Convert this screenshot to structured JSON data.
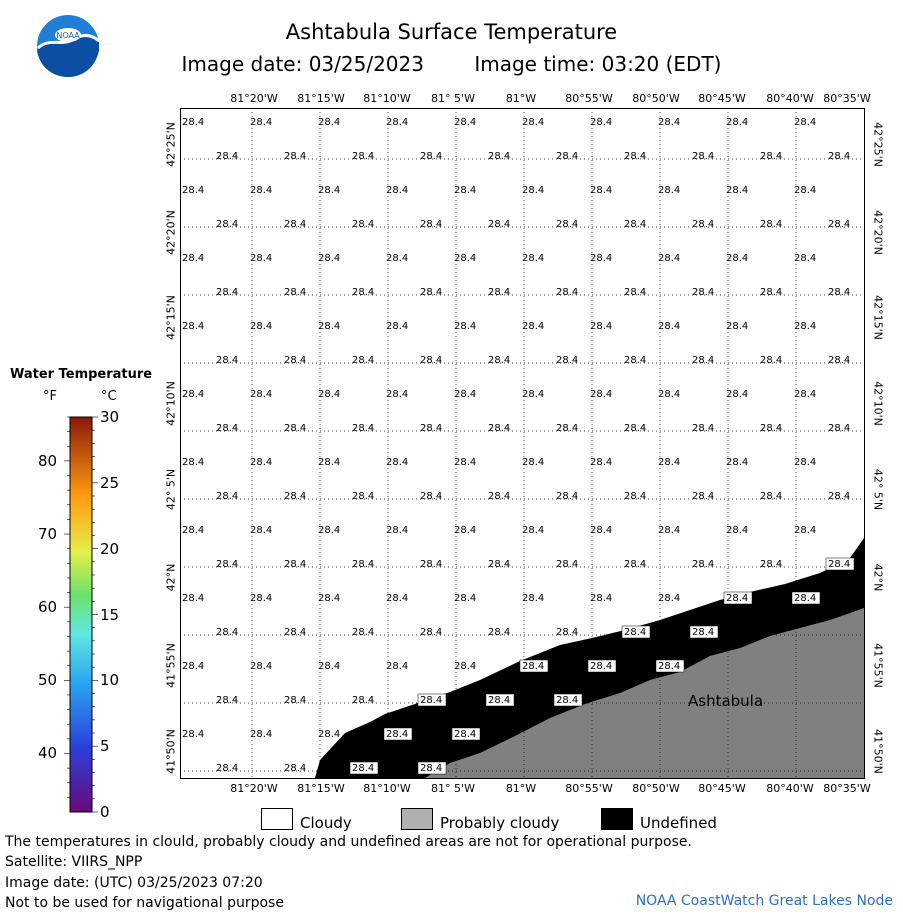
{
  "header": {
    "title": "Ashtabula Surface Temperature",
    "image_date": "Image date: 03/25/2023",
    "image_time": "Image time: 03:20 (EDT)"
  },
  "logo": {
    "text": "NOAA",
    "icon": "noaa-logo-icon"
  },
  "map": {
    "lon_labels": [
      "81°20'W",
      "81°15'W",
      "81°10'W",
      "81° 5'W",
      "81°W",
      "80°55'W",
      "80°50'W",
      "80°45'W",
      "80°40'W",
      "80°35'W"
    ],
    "lat_labels": [
      "42°25'N",
      "42°20'N",
      "42°15'N",
      "42°10'N",
      "42° 5'N",
      "42°N",
      "41°55'N",
      "41°50'N"
    ],
    "temperature_value": "28.4",
    "place_label": "Ashtabula",
    "colors": {
      "land": "#808080",
      "undefined": "#000000",
      "cloud": "#ffffff"
    }
  },
  "legend": {
    "title": "Water Temperature",
    "unit_f": "°F",
    "unit_c": "°C",
    "fahrenheit_ticks": [
      "80",
      "70",
      "60",
      "50",
      "40"
    ],
    "celsius_ticks": [
      "30",
      "25",
      "20",
      "15",
      "10",
      "5",
      "0"
    ],
    "categories": [
      {
        "label": "Cloudy",
        "color": "#ffffff"
      },
      {
        "label": "Probably cloudy",
        "color": "#b0b0b0"
      },
      {
        "label": "Undefined",
        "color": "#000000"
      }
    ]
  },
  "footer": {
    "note": "The temperatures in clould, probably cloudy and undefined areas are not for operational purpose.",
    "satellite": "Satellite: VIIRS_NPP",
    "utc_date": "Image date: (UTC) 03/25/2023  07:20",
    "nav_warning": "Not to be used for navigational purpose",
    "credit": "NOAA CoastWatch Great Lakes Node"
  }
}
